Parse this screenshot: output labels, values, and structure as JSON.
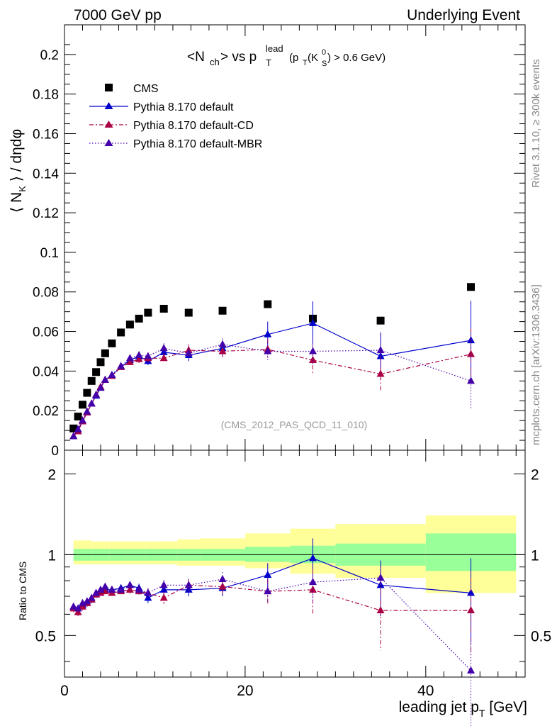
{
  "header": {
    "energy_label": "7000 GeV pp",
    "process_label": "Underlying Event",
    "plot_title_main": "<N",
    "plot_title_sub": "ch",
    "plot_title_vs": "> vs p",
    "plot_title_sup": "lead",
    "plot_title_T": "T",
    "plot_title_cut": "(p",
    "plot_title_cut2": "(K",
    "plot_title_cut_sup": "0",
    "plot_title_cut_S": "S",
    "plot_title_cut_end": ") > 0.6 GeV)",
    "analysis_id": "(CMS_2012_PAS_QCD_11_010)"
  },
  "side_labels": {
    "rivet": "Rivet 3.1.10, ≥ 300k events",
    "mcplots": "mcplots.cern.ch [arXiv:1306.3436]"
  },
  "colors": {
    "cms": "#000000",
    "default": "#0000cc",
    "cd": "#aa0044",
    "mbr": "#4400aa",
    "band_inner": "#99ff99",
    "band_outer": "#ffff99"
  },
  "chart_data": [
    {
      "type": "scatter",
      "panel": "main",
      "title": "<Nch> vs pT lead (pT(K0S) > 0.6 GeV)",
      "xlabel": "leading jet pT [GeV]",
      "ylabel": "⟨ N_K ⟩ / dηdφ",
      "xlim": [
        0,
        51
      ],
      "ylim": [
        0,
        0.215
      ],
      "yticks": [
        0,
        0.02,
        0.04,
        0.06,
        0.08,
        0.1,
        0.12,
        0.14,
        0.16,
        0.18,
        0.2
      ],
      "ytick_labels": [
        "0",
        "0.02",
        "0.04",
        "0.06",
        "0.08",
        "0.1",
        "0.12",
        "0.14",
        "0.16",
        "0.18",
        "0.2"
      ],
      "x": [
        1.0,
        1.5,
        2.0,
        2.5,
        3.0,
        3.5,
        4.0,
        4.5,
        5.25,
        6.25,
        7.25,
        8.25,
        9.25,
        11.0,
        13.75,
        17.5,
        22.5,
        27.5,
        35.0,
        45.0
      ],
      "series": [
        {
          "name": "CMS",
          "style": "square",
          "values": [
            0.011,
            0.017,
            0.023,
            0.029,
            0.035,
            0.0395,
            0.0445,
            0.049,
            0.054,
            0.0595,
            0.0635,
            0.0665,
            0.0695,
            0.0715,
            0.0695,
            0.0705,
            0.0738,
            0.0665,
            0.0655,
            0.0825
          ],
          "errors": [
            0,
            0,
            0,
            0,
            0,
            0,
            0,
            0,
            0,
            0,
            0,
            0,
            0,
            0,
            0,
            0,
            0,
            0,
            0,
            0
          ]
        },
        {
          "name": "Pythia 8.170 default",
          "style": "solid",
          "values": [
            0.007,
            0.0105,
            0.0145,
            0.019,
            0.0235,
            0.0275,
            0.0315,
            0.0355,
            0.038,
            0.042,
            0.0455,
            0.0475,
            0.045,
            0.0495,
            0.048,
            0.0515,
            0.0585,
            0.0642,
            0.0475,
            0.0555
          ],
          "errors": [
            0.0005,
            0.0005,
            0.0006,
            0.0007,
            0.0007,
            0.0008,
            0.0008,
            0.0009,
            0.001,
            0.001,
            0.0015,
            0.002,
            0.002,
            0.0025,
            0.003,
            0.004,
            0.0065,
            0.011,
            0.012,
            0.02
          ]
        },
        {
          "name": "Pythia 8.170 default-CD",
          "style": "dashdot",
          "values": [
            0.007,
            0.0095,
            0.0145,
            0.019,
            0.0235,
            0.028,
            0.032,
            0.0355,
            0.0375,
            0.042,
            0.0445,
            0.046,
            0.0465,
            0.0465,
            0.0505,
            0.05,
            0.051,
            0.0455,
            0.0385,
            0.0485
          ],
          "errors": [
            0.0005,
            0.0005,
            0.0006,
            0.0007,
            0.0007,
            0.0008,
            0.0008,
            0.0009,
            0.001,
            0.001,
            0.0015,
            0.002,
            0.002,
            0.0025,
            0.003,
            0.003,
            0.005,
            0.0075,
            0.009,
            0.013
          ]
        },
        {
          "name": "Pythia 8.170 default-MBR",
          "style": "dotted",
          "values": [
            0.007,
            0.0105,
            0.015,
            0.0195,
            0.0235,
            0.028,
            0.0315,
            0.0355,
            0.038,
            0.0425,
            0.0465,
            0.048,
            0.0475,
            0.0515,
            0.049,
            0.0535,
            0.05,
            0.05,
            0.0505,
            0.035
          ],
          "errors": [
            0.0005,
            0.0005,
            0.0006,
            0.0007,
            0.0007,
            0.0008,
            0.0008,
            0.0009,
            0.001,
            0.001,
            0.0015,
            0.002,
            0.002,
            0.0025,
            0.003,
            0.003,
            0.0045,
            0.007,
            0.009,
            0.014
          ]
        }
      ],
      "legend_position": "top-left"
    },
    {
      "type": "scatter",
      "panel": "ratio",
      "xlabel": "leading jet pT [GeV]",
      "ylabel": "Ratio to CMS",
      "xlim": [
        0,
        51
      ],
      "ylim": [
        0.35,
        2.45
      ],
      "log_y": true,
      "yticks": [
        0.5,
        1,
        2
      ],
      "ytick_labels": [
        "0.5",
        "1",
        "2"
      ],
      "xticks": [
        0,
        20,
        40
      ],
      "xtick_labels": [
        "0",
        "20",
        "40"
      ],
      "reference_line": 1,
      "bands": {
        "edges": [
          1,
          2,
          3,
          4,
          5,
          6,
          7,
          8,
          9,
          10,
          12.5,
          15,
          20,
          25,
          30,
          40,
          50
        ],
        "inner_low": [
          0.95,
          0.95,
          0.95,
          0.95,
          0.95,
          0.95,
          0.95,
          0.95,
          0.95,
          0.95,
          0.95,
          0.95,
          0.94,
          0.93,
          0.91,
          0.87
        ],
        "inner_high": [
          1.05,
          1.05,
          1.05,
          1.05,
          1.05,
          1.05,
          1.05,
          1.05,
          1.05,
          1.05,
          1.05,
          1.05,
          1.07,
          1.08,
          1.1,
          1.2
        ],
        "outer_low": [
          0.92,
          0.92,
          0.92,
          0.92,
          0.92,
          0.92,
          0.92,
          0.92,
          0.92,
          0.92,
          0.91,
          0.91,
          0.89,
          0.85,
          0.82,
          0.72
        ],
        "outer_high": [
          1.13,
          1.13,
          1.12,
          1.12,
          1.12,
          1.12,
          1.12,
          1.12,
          1.12,
          1.12,
          1.14,
          1.15,
          1.2,
          1.25,
          1.3,
          1.4
        ]
      },
      "x": [
        1.0,
        1.5,
        2.0,
        2.5,
        3.0,
        3.5,
        4.0,
        4.5,
        5.25,
        6.25,
        7.25,
        8.25,
        9.25,
        11.0,
        13.75,
        17.5,
        22.5,
        27.5,
        35.0,
        45.0
      ],
      "series": [
        {
          "name": "Pythia 8.170 default",
          "style": "solid",
          "values": [
            0.64,
            0.63,
            0.65,
            0.66,
            0.68,
            0.71,
            0.73,
            0.74,
            0.74,
            0.75,
            0.77,
            0.75,
            0.69,
            0.74,
            0.74,
            0.75,
            0.84,
            0.97,
            0.77,
            0.72
          ],
          "errors": [
            0.02,
            0.02,
            0.02,
            0.02,
            0.02,
            0.02,
            0.02,
            0.02,
            0.02,
            0.02,
            0.025,
            0.03,
            0.03,
            0.035,
            0.04,
            0.05,
            0.09,
            0.18,
            0.18,
            0.25
          ]
        },
        {
          "name": "Pythia 8.170 default-CD",
          "style": "dashdot",
          "values": [
            0.63,
            0.61,
            0.64,
            0.66,
            0.68,
            0.71,
            0.72,
            0.73,
            0.72,
            0.73,
            0.74,
            0.73,
            0.72,
            0.69,
            0.77,
            0.76,
            0.73,
            0.74,
            0.62,
            0.62
          ],
          "errors": [
            0.02,
            0.02,
            0.02,
            0.02,
            0.02,
            0.02,
            0.02,
            0.02,
            0.02,
            0.02,
            0.025,
            0.03,
            0.03,
            0.035,
            0.04,
            0.05,
            0.08,
            0.14,
            0.18,
            0.2
          ]
        },
        {
          "name": "Pythia 8.170 default-MBR",
          "style": "dotted",
          "values": [
            0.64,
            0.63,
            0.66,
            0.67,
            0.69,
            0.72,
            0.74,
            0.76,
            0.74,
            0.74,
            0.77,
            0.74,
            0.72,
            0.77,
            0.77,
            0.81,
            0.73,
            0.79,
            0.82,
            0.37
          ],
          "errors": [
            0.02,
            0.02,
            0.02,
            0.02,
            0.02,
            0.02,
            0.02,
            0.02,
            0.02,
            0.02,
            0.025,
            0.03,
            0.03,
            0.035,
            0.04,
            0.05,
            0.07,
            0.12,
            0.13,
            0.2
          ]
        }
      ]
    }
  ]
}
